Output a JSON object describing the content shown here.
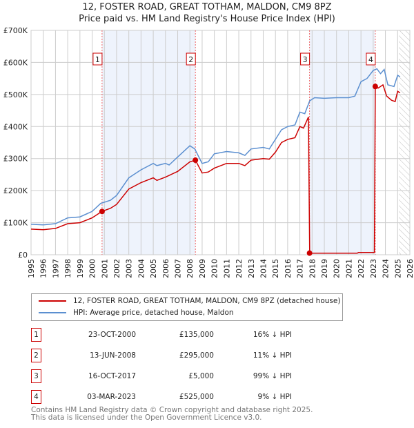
{
  "chart_data": {
    "type": "line",
    "title": "12, FOSTER ROAD, GREAT TOTHAM, MALDON, CM9 8PZ",
    "subtitle": "Price paid vs. HM Land Registry's House Price Index (HPI)",
    "xlim": [
      1995,
      2026
    ],
    "ylim": [
      0,
      700000
    ],
    "yticks": [
      {
        "v": 0,
        "label": "£0"
      },
      {
        "v": 100000,
        "label": "£100K"
      },
      {
        "v": 200000,
        "label": "£200K"
      },
      {
        "v": 300000,
        "label": "£300K"
      },
      {
        "v": 400000,
        "label": "£400K"
      },
      {
        "v": 500000,
        "label": "£500K"
      },
      {
        "v": 600000,
        "label": "£600K"
      },
      {
        "v": 700000,
        "label": "£700K"
      }
    ],
    "xticks": [
      "1995",
      "1996",
      "1997",
      "1998",
      "1999",
      "2000",
      "2001",
      "2002",
      "2003",
      "2004",
      "2005",
      "2006",
      "2007",
      "2008",
      "2009",
      "2010",
      "2011",
      "2012",
      "2013",
      "2014",
      "2015",
      "2016",
      "2017",
      "2018",
      "2019",
      "2020",
      "2021",
      "2022",
      "2023",
      "2024",
      "2025",
      "2026"
    ],
    "grid": true,
    "forecast_from": 2025.1,
    "colors": {
      "property": "#cc0000",
      "hpi": "#5b8fd0",
      "shade": "#eef3fc"
    },
    "series": [
      {
        "name": "12, FOSTER ROAD, GREAT TOTHAM, MALDON, CM9 8PZ (detached house)",
        "points": [
          [
            1995,
            80000
          ],
          [
            1996,
            78000
          ],
          [
            1997,
            82000
          ],
          [
            1998,
            97000
          ],
          [
            1999,
            100000
          ],
          [
            2000,
            115000
          ],
          [
            2000.8,
            135000
          ],
          [
            2001.5,
            145000
          ],
          [
            2002,
            157000
          ],
          [
            2003,
            205000
          ],
          [
            2004,
            225000
          ],
          [
            2005,
            240000
          ],
          [
            2005.3,
            232000
          ],
          [
            2006,
            242000
          ],
          [
            2007,
            260000
          ],
          [
            2008,
            290000
          ],
          [
            2008.45,
            295000
          ],
          [
            2009,
            255000
          ],
          [
            2009.5,
            258000
          ],
          [
            2010,
            270000
          ],
          [
            2011,
            285000
          ],
          [
            2012,
            285000
          ],
          [
            2012.5,
            278000
          ],
          [
            2013,
            295000
          ],
          [
            2014,
            300000
          ],
          [
            2014.5,
            298000
          ],
          [
            2015,
            320000
          ],
          [
            2015.5,
            350000
          ],
          [
            2016,
            360000
          ],
          [
            2016.6,
            365000
          ],
          [
            2017,
            400000
          ],
          [
            2017.3,
            395000
          ],
          [
            2017.7,
            430000
          ],
          [
            2017.8,
            5000
          ],
          [
            2021.7,
            5000
          ],
          [
            2021.8,
            7000
          ],
          [
            2023.1,
            7000
          ],
          [
            2023.17,
            525000
          ],
          [
            2023.4,
            520000
          ],
          [
            2023.8,
            530000
          ],
          [
            2024.1,
            495000
          ],
          [
            2024.5,
            482000
          ],
          [
            2024.8,
            478000
          ],
          [
            2025.0,
            510000
          ],
          [
            2025.2,
            505000
          ]
        ]
      },
      {
        "name": "HPI: Average price, detached house, Maldon",
        "points": [
          [
            1995,
            95000
          ],
          [
            1996,
            93000
          ],
          [
            1997,
            97000
          ],
          [
            1998,
            115000
          ],
          [
            1999,
            118000
          ],
          [
            2000,
            135000
          ],
          [
            2000.7,
            160000
          ],
          [
            2001.5,
            170000
          ],
          [
            2002,
            185000
          ],
          [
            2003,
            240000
          ],
          [
            2004,
            265000
          ],
          [
            2005,
            285000
          ],
          [
            2005.3,
            278000
          ],
          [
            2006,
            285000
          ],
          [
            2006.3,
            280000
          ],
          [
            2007,
            305000
          ],
          [
            2008,
            340000
          ],
          [
            2008.4,
            330000
          ],
          [
            2009,
            285000
          ],
          [
            2009.5,
            290000
          ],
          [
            2010,
            315000
          ],
          [
            2011,
            322000
          ],
          [
            2012,
            318000
          ],
          [
            2012.5,
            310000
          ],
          [
            2013,
            330000
          ],
          [
            2014,
            335000
          ],
          [
            2014.5,
            330000
          ],
          [
            2015,
            360000
          ],
          [
            2015.5,
            390000
          ],
          [
            2016,
            400000
          ],
          [
            2016.6,
            405000
          ],
          [
            2017,
            445000
          ],
          [
            2017.4,
            440000
          ],
          [
            2017.8,
            480000
          ],
          [
            2018.2,
            490000
          ],
          [
            2019,
            488000
          ],
          [
            2020,
            490000
          ],
          [
            2021,
            490000
          ],
          [
            2021.5,
            495000
          ],
          [
            2022,
            540000
          ],
          [
            2022.5,
            550000
          ],
          [
            2023,
            575000
          ],
          [
            2023.3,
            580000
          ],
          [
            2023.6,
            565000
          ],
          [
            2023.9,
            578000
          ],
          [
            2024.2,
            530000
          ],
          [
            2024.7,
            525000
          ],
          [
            2025,
            560000
          ],
          [
            2025.2,
            555000
          ]
        ]
      }
    ],
    "sales": [
      {
        "n": "1",
        "x": 2000.81,
        "y": 135000
      },
      {
        "n": "2",
        "x": 2008.45,
        "y": 295000
      },
      {
        "n": "3",
        "x": 2017.79,
        "y": 5000
      },
      {
        "n": "4",
        "x": 2023.17,
        "y": 525000
      }
    ],
    "shaded_ranges": [
      [
        2000.81,
        2008.45
      ],
      [
        2017.79,
        2023.17
      ]
    ]
  },
  "legend": {
    "property": "12, FOSTER ROAD, GREAT TOTHAM, MALDON, CM9 8PZ (detached house)",
    "hpi": "HPI: Average price, detached house, Maldon"
  },
  "transactions": [
    {
      "n": "1",
      "date": "23-OCT-2000",
      "price": "£135,000",
      "hpi": "16% ↓ HPI"
    },
    {
      "n": "2",
      "date": "13-JUN-2008",
      "price": "£295,000",
      "hpi": "11% ↓ HPI"
    },
    {
      "n": "3",
      "date": "16-OCT-2017",
      "price": "£5,000",
      "hpi": "99% ↓ HPI"
    },
    {
      "n": "4",
      "date": "03-MAR-2023",
      "price": "£525,000",
      "hpi": "9% ↓ HPI"
    }
  ],
  "footer": {
    "line1": "Contains HM Land Registry data © Crown copyright and database right 2025.",
    "line2": "This data is licensed under the Open Government Licence v3.0."
  }
}
